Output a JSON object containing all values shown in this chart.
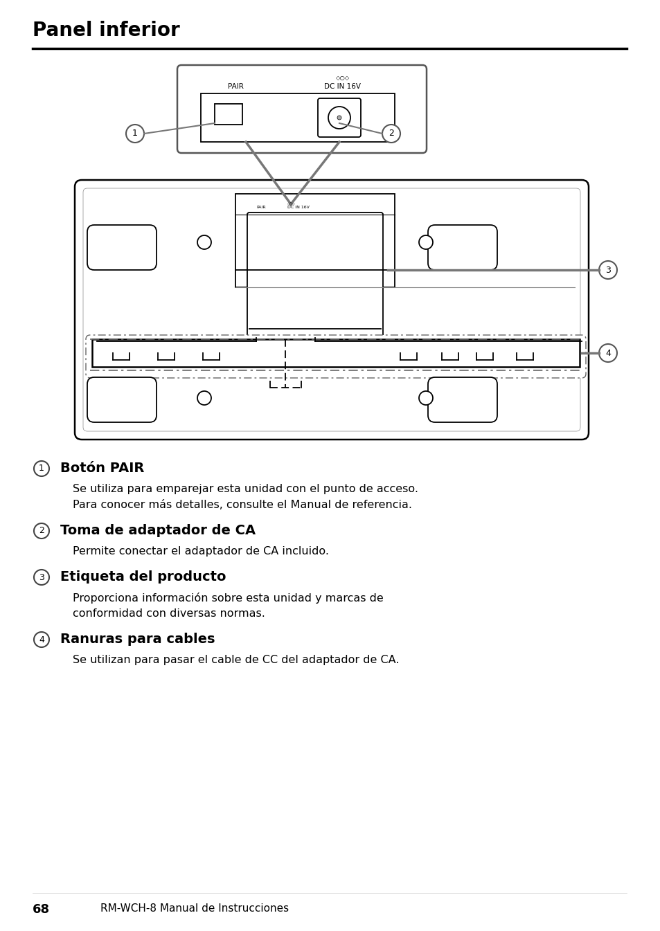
{
  "title": "Panel inferior",
  "items": [
    {
      "number": "1",
      "heading": "Botón PAIR",
      "lines": [
        "Se utiliza para emparejar esta unidad con el punto de acceso.",
        "Para conocer más detalles, consulte el Manual de referencia."
      ]
    },
    {
      "number": "2",
      "heading": "Toma de adaptador de CA",
      "lines": [
        "Permite conectar el adaptador de CA incluido."
      ]
    },
    {
      "number": "3",
      "heading": "Etiqueta del producto",
      "lines": [
        "Proporciona información sobre esta unidad y marcas de",
        "conformidad con diversas normas."
      ]
    },
    {
      "number": "4",
      "heading": "Ranuras para cables",
      "lines": [
        "Se utilizan para pasar el cable de CC del adaptador de CA."
      ]
    }
  ],
  "footer_number": "68",
  "footer_text": "RM-WCH-8 Manual de Instrucciones",
  "bg_color": "#ffffff",
  "text_color": "#000000"
}
